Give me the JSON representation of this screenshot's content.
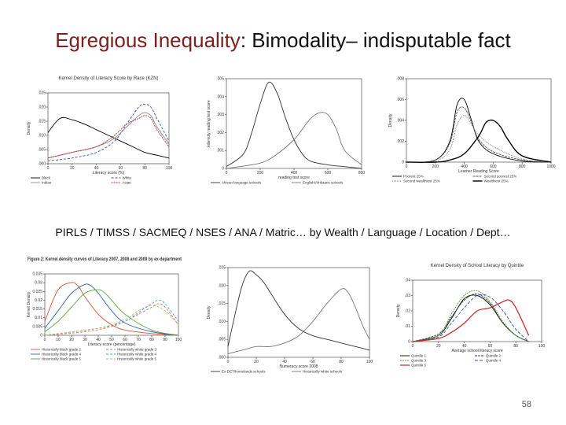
{
  "slide": {
    "title_em": "Egregious Inequality",
    "title_rest": ": Bimodality– indisputable fact",
    "subtitle": "PIRLS / TIMSS / SACMEQ / NSES / ANA / Matric… by Wealth / Language / Location / Dept…",
    "page_number": "58"
  },
  "chart_data": [
    {
      "type": "line",
      "title": "Kernel Density of Literacy Score by Race (KZN)",
      "xlabel": "Literacy score (%)",
      "ylabel": "Density",
      "xlim": [
        0,
        100
      ],
      "ylim": [
        0,
        0.025
      ],
      "xticks": [
        "0",
        "20",
        "40",
        "60",
        "80",
        "100"
      ],
      "yticks": [
        ".000",
        ".005",
        ".010",
        ".015",
        ".020",
        ".025"
      ],
      "series": [
        {
          "name": "Black",
          "color": "#000000",
          "dash": "",
          "x": [
            0,
            10,
            20,
            30,
            40,
            50,
            60,
            70,
            80,
            90,
            100
          ],
          "y": [
            0.011,
            0.016,
            0.0155,
            0.014,
            0.012,
            0.01,
            0.008,
            0.006,
            0.004,
            0.003,
            0.002
          ]
        },
        {
          "name": "White",
          "color": "#3050c0",
          "dash": "3,2",
          "x": [
            0,
            20,
            40,
            55,
            65,
            75,
            80,
            85,
            90,
            100
          ],
          "y": [
            0.001,
            0.002,
            0.004,
            0.008,
            0.014,
            0.02,
            0.021,
            0.02,
            0.016,
            0.008
          ]
        },
        {
          "name": "Indian",
          "color": "#888888",
          "dash": "",
          "x": [
            0,
            20,
            40,
            55,
            65,
            75,
            80,
            85,
            90,
            100
          ],
          "y": [
            0.002,
            0.004,
            0.006,
            0.009,
            0.013,
            0.017,
            0.018,
            0.017,
            0.013,
            0.007
          ]
        },
        {
          "name": "Asian",
          "color": "#c03030",
          "dash": "2,1",
          "x": [
            0,
            20,
            40,
            55,
            65,
            75,
            80,
            85,
            90,
            100
          ],
          "y": [
            0.002,
            0.004,
            0.006,
            0.01,
            0.014,
            0.016,
            0.017,
            0.016,
            0.012,
            0.006
          ]
        }
      ]
    },
    {
      "type": "line",
      "xlabel": "reading test score",
      "ylabel": "kdensity reading test score",
      "xlim": [
        0,
        800
      ],
      "ylim": [
        0,
        0.005
      ],
      "xticks": [
        "0",
        "200",
        "400",
        "600",
        "800"
      ],
      "yticks": [
        "0",
        ".001",
        ".002",
        ".003",
        ".004",
        ".005"
      ],
      "series": [
        {
          "name": "African language schools",
          "color": "#333333",
          "dash": "",
          "x": [
            0,
            100,
            150,
            200,
            250,
            300,
            350,
            400,
            450,
            500,
            600,
            700,
            800
          ],
          "y": [
            0.0001,
            0.0008,
            0.002,
            0.0036,
            0.0048,
            0.0042,
            0.0028,
            0.0016,
            0.0008,
            0.0004,
            0.0002,
            0.0001,
            0.0
          ]
        },
        {
          "name": "English/Afrikaans schools",
          "color": "#777777",
          "dash": "",
          "x": [
            0,
            200,
            300,
            400,
            450,
            500,
            550,
            600,
            650,
            700,
            800
          ],
          "y": [
            0.0,
            0.0003,
            0.0008,
            0.0016,
            0.0022,
            0.0028,
            0.0031,
            0.003,
            0.0022,
            0.001,
            0.0002
          ]
        }
      ]
    },
    {
      "type": "line",
      "xlabel": "Learner Reading Score",
      "ylabel": "Density",
      "xlim": [
        0,
        1000
      ],
      "ylim": [
        0,
        0.008
      ],
      "xticks": [
        "0",
        "200",
        "400",
        "600",
        "800",
        "1000"
      ],
      "yticks": [
        "0",
        ".002",
        ".004",
        ".006",
        ".008"
      ],
      "series": [
        {
          "name": "Poorest 25%",
          "color": "#000000",
          "dash": "",
          "x": [
            0,
            200,
            300,
            350,
            400,
            450,
            500,
            600,
            800,
            1000
          ],
          "y": [
            0,
            0.0002,
            0.002,
            0.0055,
            0.006,
            0.004,
            0.002,
            0.0008,
            0.0001,
            0
          ]
        },
        {
          "name": "Second poorest 25%",
          "color": "#555555",
          "dash": "3,1",
          "x": [
            0,
            200,
            300,
            350,
            400,
            450,
            500,
            600,
            800,
            1000
          ],
          "y": [
            0,
            0.0002,
            0.0018,
            0.0048,
            0.0052,
            0.0038,
            0.0022,
            0.001,
            0.0002,
            0
          ]
        },
        {
          "name": "Second wealthiest 25%",
          "color": "#777777",
          "dash": "1,1",
          "x": [
            0,
            200,
            300,
            350,
            400,
            450,
            500,
            600,
            800,
            1000
          ],
          "y": [
            0,
            0.0001,
            0.0012,
            0.0036,
            0.0045,
            0.0036,
            0.0026,
            0.0015,
            0.0003,
            0
          ]
        },
        {
          "name": "Wealthiest 25%",
          "color": "#000000",
          "dash": "",
          "width": 1.4,
          "x": [
            0,
            200,
            300,
            400,
            500,
            550,
            600,
            650,
            700,
            800,
            1000
          ],
          "y": [
            0,
            0,
            0.0002,
            0.0008,
            0.0025,
            0.0038,
            0.004,
            0.0034,
            0.0022,
            0.0006,
            0
          ]
        }
      ]
    },
    {
      "type": "line",
      "title": "Figure 2: Kernel density curves of Literacy 2007, 2008 and 2009 by ex-department",
      "xlabel": "Literacy score (percentage)",
      "ylabel": "Kernel Density",
      "xlim": [
        0,
        100
      ],
      "ylim": [
        0,
        0.035
      ],
      "xticks": [
        "0",
        "10",
        "20",
        "30",
        "40",
        "50",
        "60",
        "70",
        "80",
        "90",
        "100"
      ],
      "yticks": [
        "0",
        "0.005",
        "0.01",
        "0.015",
        "0.02",
        "0.025",
        "0.03",
        "0.035"
      ],
      "series": [
        {
          "name": "Historically black grade 2",
          "color": "#e05030",
          "dash": "",
          "x": [
            0,
            10,
            20,
            25,
            30,
            40,
            50,
            60,
            80,
            100
          ],
          "y": [
            0.008,
            0.026,
            0.03,
            0.028,
            0.022,
            0.012,
            0.006,
            0.003,
            0.001,
            0
          ]
        },
        {
          "name": "Historically white grade 3",
          "color": "#e07070",
          "dash": "3,2",
          "x": [
            0,
            30,
            50,
            60,
            70,
            80,
            85,
            90,
            100
          ],
          "y": [
            0,
            0.002,
            0.005,
            0.008,
            0.012,
            0.016,
            0.018,
            0.016,
            0.006
          ]
        },
        {
          "name": "Historically black grade 4",
          "color": "#3060c0",
          "dash": "",
          "x": [
            0,
            10,
            20,
            30,
            35,
            40,
            50,
            60,
            80,
            100
          ],
          "y": [
            0.004,
            0.014,
            0.024,
            0.029,
            0.028,
            0.024,
            0.014,
            0.007,
            0.002,
            0
          ]
        },
        {
          "name": "Historically white grade 4",
          "color": "#50a0d0",
          "dash": "3,2",
          "x": [
            0,
            40,
            60,
            70,
            80,
            85,
            90,
            100
          ],
          "y": [
            0,
            0.004,
            0.008,
            0.013,
            0.018,
            0.02,
            0.018,
            0.008
          ]
        },
        {
          "name": "Historically black grade 5",
          "color": "#60a040",
          "dash": "",
          "x": [
            0,
            10,
            20,
            30,
            40,
            45,
            50,
            60,
            80,
            100
          ],
          "y": [
            0.002,
            0.008,
            0.016,
            0.024,
            0.026,
            0.024,
            0.02,
            0.012,
            0.003,
            0
          ]
        },
        {
          "name": "Historically white grade 5",
          "color": "#a0c060",
          "dash": "3,2",
          "x": [
            0,
            40,
            60,
            70,
            80,
            90,
            100
          ],
          "y": [
            0,
            0.004,
            0.009,
            0.014,
            0.017,
            0.014,
            0.006
          ]
        }
      ]
    },
    {
      "type": "line",
      "xlabel": "Numeracy score 2008",
      "ylabel": "Density",
      "xlim": [
        0,
        100
      ],
      "ylim": [
        0,
        0.025
      ],
      "xticks": [
        "0",
        "20",
        "40",
        "60",
        "80",
        "100"
      ],
      "yticks": [
        ".000",
        ".005",
        ".010",
        ".015",
        ".020",
        ".025"
      ],
      "series": [
        {
          "name": "Ex-DET/homelands schools",
          "color": "#333333",
          "dash": "",
          "x": [
            0,
            5,
            10,
            15,
            20,
            25,
            30,
            40,
            50,
            60,
            70,
            80,
            90,
            100
          ],
          "y": [
            0.003,
            0.012,
            0.02,
            0.024,
            0.023,
            0.021,
            0.018,
            0.012,
            0.008,
            0.006,
            0.005,
            0.004,
            0.003,
            0.002
          ]
        },
        {
          "name": "Historically white schools",
          "color": "#777777",
          "dash": "",
          "x": [
            0,
            10,
            20,
            30,
            40,
            50,
            60,
            70,
            80,
            85,
            90,
            95,
            100
          ],
          "y": [
            0.001,
            0.002,
            0.003,
            0.003,
            0.004,
            0.006,
            0.01,
            0.015,
            0.019,
            0.018,
            0.014,
            0.009,
            0.005
          ]
        }
      ]
    },
    {
      "type": "line",
      "title": "Kernel Density of School Literacy by Quintile",
      "xlabel": "Average school literacy score",
      "ylabel": "Density",
      "xlim": [
        0,
        100
      ],
      "ylim": [
        0,
        0.04
      ],
      "xticks": [
        "0",
        "20",
        "40",
        "60",
        "80",
        "100"
      ],
      "yticks": [
        "0",
        ".01",
        ".02",
        ".03",
        ".04"
      ],
      "series": [
        {
          "name": "Quintile 1",
          "color": "#000000",
          "dash": "",
          "x": [
            0,
            20,
            30,
            40,
            50,
            60,
            70,
            80,
            90
          ],
          "y": [
            0,
            0.004,
            0.015,
            0.028,
            0.03,
            0.024,
            0.012,
            0.004,
            0
          ]
        },
        {
          "name": "Quintile 2",
          "color": "#404040",
          "dash": "3,1",
          "x": [
            0,
            20,
            30,
            40,
            50,
            60,
            70,
            80,
            90
          ],
          "y": [
            0,
            0.005,
            0.016,
            0.027,
            0.031,
            0.025,
            0.012,
            0.004,
            0
          ]
        },
        {
          "name": "Quintile 3",
          "color": "#60a040",
          "dash": "2,1",
          "x": [
            0,
            20,
            30,
            40,
            50,
            60,
            70,
            80,
            90
          ],
          "y": [
            0,
            0.004,
            0.018,
            0.03,
            0.033,
            0.026,
            0.013,
            0.004,
            0
          ]
        },
        {
          "name": "Quintile 4",
          "color": "#3050c0",
          "dash": "4,2",
          "x": [
            0,
            20,
            30,
            40,
            50,
            60,
            70,
            80,
            90
          ],
          "y": [
            0,
            0.003,
            0.012,
            0.022,
            0.03,
            0.029,
            0.02,
            0.008,
            0
          ]
        },
        {
          "name": "Quintile 5",
          "color": "#d02020",
          "dash": "",
          "width": 1.2,
          "x": [
            0,
            20,
            30,
            40,
            50,
            60,
            70,
            75,
            80,
            90
          ],
          "y": [
            0,
            0.002,
            0.006,
            0.012,
            0.02,
            0.022,
            0.026,
            0.027,
            0.022,
            0.004
          ]
        }
      ]
    }
  ]
}
